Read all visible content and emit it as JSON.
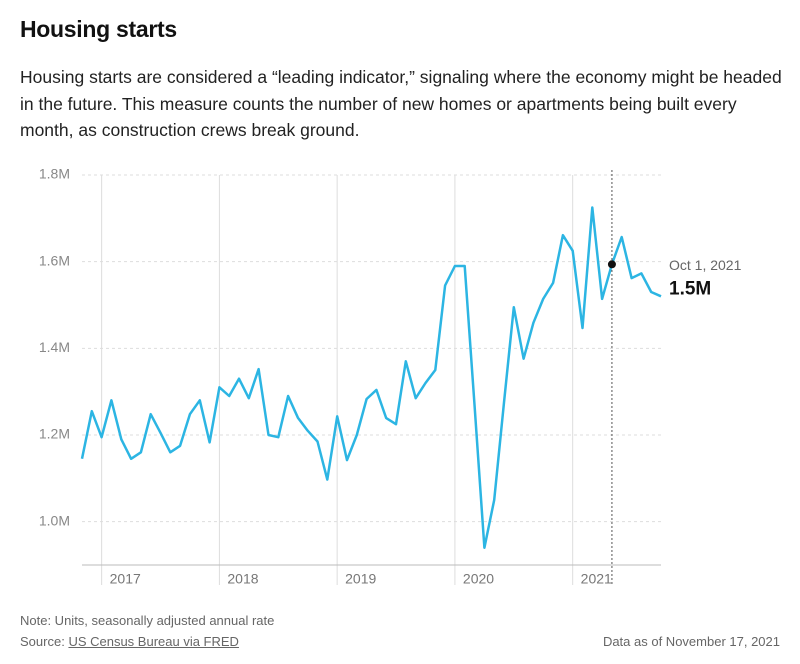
{
  "chart_data": {
    "type": "line",
    "title": "Housing starts",
    "subtitle": "Housing starts are considered a “leading indicator,” signaling where the economy might be headed in the future. This measure counts the number of new homes or apartments being built every month, as construction crews break ground.",
    "categories": [
      null,
      null,
      "2017",
      null,
      null,
      null,
      null,
      null,
      null,
      null,
      null,
      null,
      null,
      null,
      "2018",
      null,
      null,
      null,
      null,
      null,
      null,
      null,
      null,
      null,
      null,
      null,
      "2019",
      null,
      null,
      null,
      null,
      null,
      null,
      null,
      null,
      null,
      null,
      null,
      "2020",
      null,
      null,
      null,
      null,
      null,
      null,
      null,
      null,
      null,
      null,
      null,
      "2021",
      null,
      null,
      null,
      null,
      null,
      null,
      null,
      null,
      null
    ],
    "series": [
      {
        "color": "#2cb5e3",
        "values": [
          1145000,
          1255000,
          1195000,
          1280000,
          1190000,
          1145000,
          1160000,
          1248000,
          1205000,
          1160000,
          1175000,
          1248000,
          1280000,
          1183000,
          1310000,
          1290000,
          1330000,
          1285000,
          1352000,
          1200000,
          1195000,
          1290000,
          1240000,
          1210000,
          1185000,
          1097000,
          1243000,
          1142000,
          1200000,
          1283000,
          1304000,
          1239000,
          1225000,
          1370000,
          1285000,
          1320000,
          1350000,
          1545000,
          1590000,
          1590000,
          1270000,
          940000,
          1050000,
          1275000,
          1495000,
          1376000,
          1459000,
          1514000,
          1551000,
          1661000,
          1625000,
          1447000,
          1725000,
          1514000,
          1594000,
          1657000,
          1562000,
          1573000,
          1530000,
          1520000
        ],
        "value_labels": [
          null,
          null,
          null,
          null,
          null,
          null,
          null,
          null,
          null,
          null,
          null,
          null,
          null,
          null,
          null,
          null,
          null,
          null,
          null,
          null,
          null,
          null,
          null,
          null,
          null,
          null,
          null,
          null,
          null,
          null,
          null,
          null,
          null,
          null,
          null,
          null,
          null,
          null,
          null,
          null,
          null,
          null,
          null,
          null,
          null,
          null,
          null,
          null,
          null,
          null,
          null,
          null,
          null,
          null,
          null,
          null,
          null,
          null,
          null,
          "1.5M"
        ]
      }
    ],
    "annotation": "Oct 1, 2021",
    "hover_index": 54,
    "ylim": [
      900000,
      1800000
    ],
    "yticks": [
      {
        "value": 1000000,
        "label": "1.0M"
      },
      {
        "value": 1200000,
        "label": "1.2M"
      },
      {
        "value": 1400000,
        "label": "1.4M"
      },
      {
        "value": 1600000,
        "label": "1.6M"
      },
      {
        "value": 1800000,
        "label": "1.8M"
      }
    ],
    "grid": true,
    "note": "Note: Units, seasonally adjusted annual rate",
    "source_prefix": "Source:",
    "source_link": "US Census Bureau via FRED",
    "data_date": "Data as of November 17, 2021"
  }
}
